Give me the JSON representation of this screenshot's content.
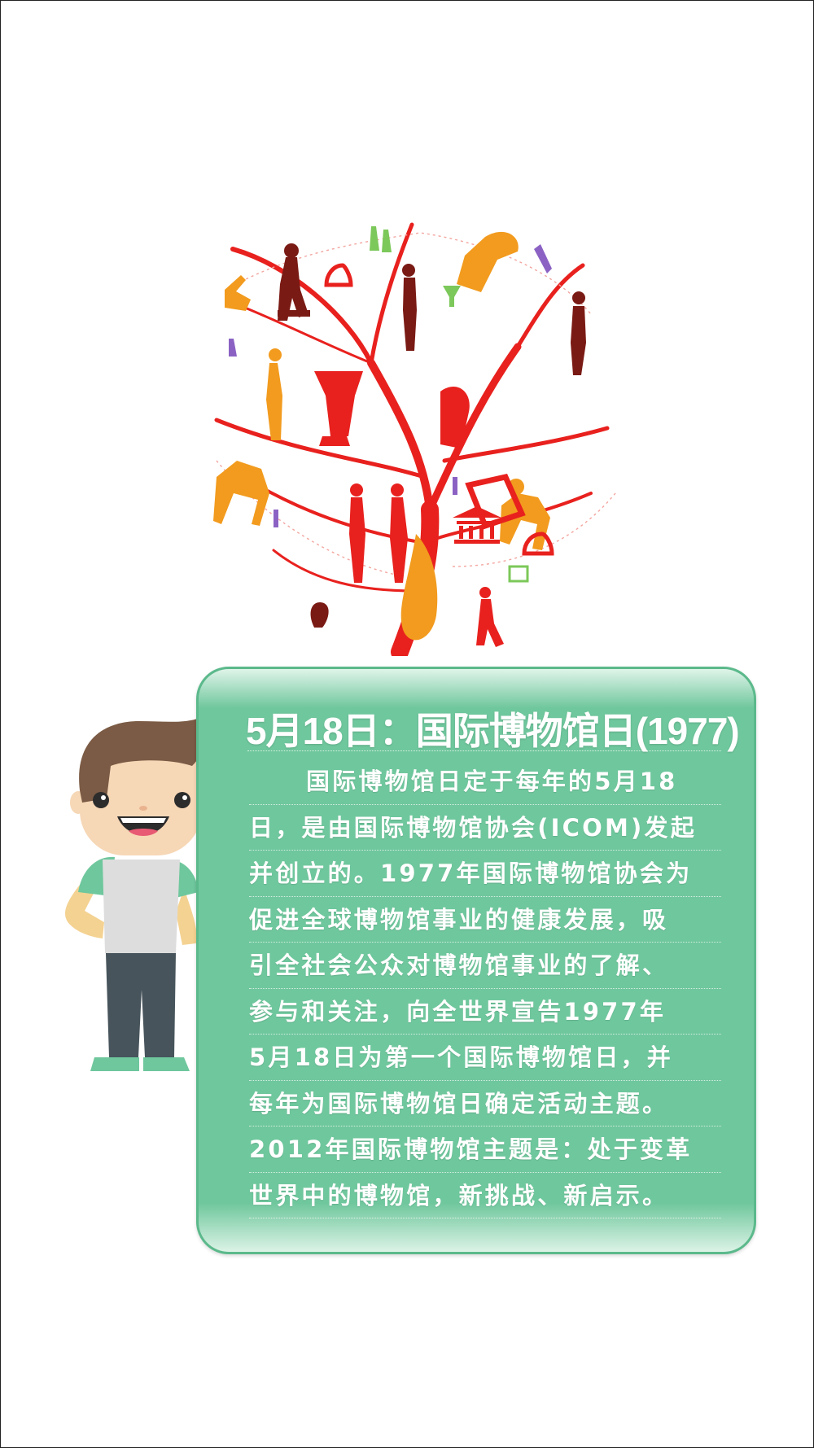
{
  "card": {
    "title": "5月18日：国际博物馆日(1977)",
    "lines": [
      "国际博物馆日定于每年的5月18",
      "日，是由国际博物馆协会(ICOM)发起",
      "并创立的。1977年国际博物馆协会为",
      "促进全球博物馆事业的健康发展，吸",
      "引全社会公众对博物馆事业的了解、",
      "参与和关注，向全世界宣告1977年",
      "5月18日为第一个国际博物馆日，并",
      "每年为国际博物馆日确定活动主题。",
      "2012年国际博物馆主题是：处于变革",
      "世界中的博物馆，新挑战、新启示。"
    ]
  },
  "colors": {
    "card": "#6fc79d",
    "tree": "#e8211e",
    "orange": "#f29b1e",
    "maroon": "#7a1a14",
    "purple": "#8b62c4",
    "green": "#7cc85a"
  },
  "icons": [
    "museum-tree-illustration",
    "cartoon-boy-illustration"
  ]
}
